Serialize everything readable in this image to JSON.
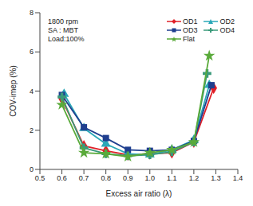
{
  "chart_data": {
    "type": "line",
    "annotations": [
      "1800 rpm",
      "SA : MBT",
      "Load:100%"
    ],
    "x_label": "Excess air ratio (λ)",
    "y_label": "COV-imep (%)",
    "xlim": [
      0.5,
      1.4
    ],
    "xticks": [
      0.5,
      0.6,
      0.7,
      0.8,
      0.9,
      {
        "value": 1,
        "label": "1.0"
      },
      1.1,
      1.2,
      1.3,
      1.4
    ],
    "ylim": [
      0,
      8
    ],
    "yticks": [
      0,
      2,
      4,
      6,
      8
    ],
    "grid": false,
    "legend": "upper right",
    "series": [
      {
        "name": "OD1",
        "color": "#e02028",
        "marker": "diamond",
        "x": [
          0.6,
          0.7,
          0.8,
          0.9,
          1.0,
          1.1,
          1.2,
          1.29
        ],
        "values": [
          3.6,
          1.2,
          0.95,
          0.75,
          0.8,
          0.85,
          1.4,
          4.15
        ]
      },
      {
        "name": "OD2",
        "color": "#2aa8b8",
        "marker": "triangle",
        "x": [
          0.61,
          0.7,
          0.8,
          0.9,
          1.0,
          1.1,
          1.2,
          1.27
        ],
        "values": [
          3.85,
          2.1,
          1.3,
          0.8,
          0.75,
          1.0,
          1.5,
          4.3
        ]
      },
      {
        "name": "OD3",
        "color": "#1f3f8f",
        "marker": "square",
        "x": [
          0.6,
          0.7,
          0.8,
          0.9,
          1.0,
          1.1,
          1.2,
          1.28
        ],
        "values": [
          3.8,
          2.15,
          1.6,
          1.0,
          0.95,
          1.0,
          1.45,
          4.3
        ]
      },
      {
        "name": "OD4",
        "color": "#3a9a7a",
        "marker": "cross",
        "x": [
          0.6,
          0.7,
          0.8,
          0.9,
          1.0,
          1.1,
          1.2,
          1.26
        ],
        "values": [
          3.7,
          1.1,
          0.8,
          0.7,
          0.75,
          0.9,
          1.4,
          4.9
        ]
      },
      {
        "name": "Flat",
        "color": "#5aaa3a",
        "marker": "star",
        "x": [
          0.6,
          0.7,
          0.8,
          0.9,
          1.0,
          1.1,
          1.2,
          1.27
        ],
        "values": [
          3.3,
          0.85,
          0.8,
          0.65,
          0.85,
          1.0,
          1.4,
          5.8
        ]
      }
    ]
  }
}
